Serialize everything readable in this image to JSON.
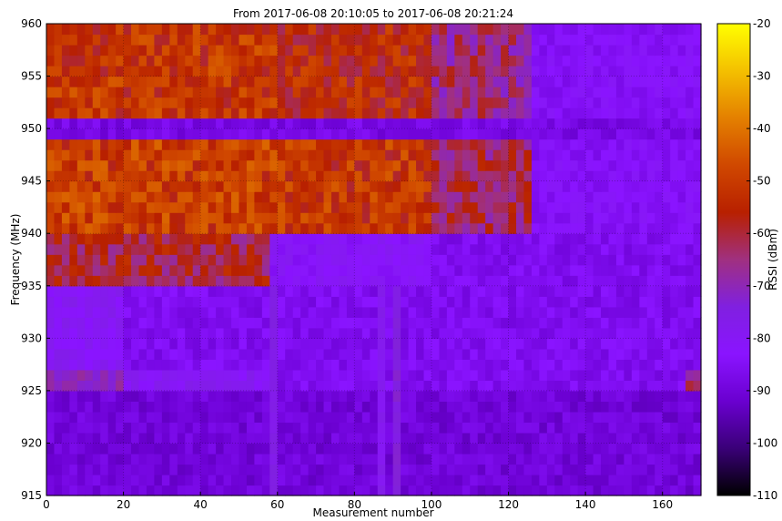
{
  "chart_data": {
    "type": "heatmap",
    "title": "From 2017-06-08 20:10:05 to 2017-06-08 20:21:24",
    "xlabel": "Measurement number",
    "ylabel": "Frequency (MHz)",
    "colorbar_label": "RSSI (dBm)",
    "xlim": [
      0,
      170
    ],
    "ylim": [
      915,
      960
    ],
    "x_ticks": [
      0,
      20,
      40,
      60,
      80,
      100,
      120,
      140,
      160
    ],
    "y_ticks": [
      915,
      920,
      925,
      930,
      935,
      940,
      945,
      950,
      955,
      960
    ],
    "colorbar_range": [
      -110,
      -20
    ],
    "colorbar_ticks": [
      -20,
      -30,
      -40,
      -50,
      -60,
      -70,
      -80,
      -90,
      -100,
      -110
    ],
    "colormap": [
      "#000000",
      "#3a0078",
      "#6a00d0",
      "#8a14ff",
      "#8020e0",
      "#a03080",
      "#b82000",
      "#d04800",
      "#e48000",
      "#f4c000",
      "#ffff00"
    ],
    "grid": true,
    "bins": {
      "x_step": 2,
      "y_step": 1
    },
    "rssi_bands": [
      {
        "freq_from": 915,
        "freq_to": 925,
        "segments": [
          {
            "x_from": 0,
            "x_to": 170,
            "rssi": -90
          }
        ]
      },
      {
        "freq_from": 925,
        "freq_to": 927,
        "segments": [
          {
            "x_from": 0,
            "x_to": 20,
            "rssi": -70
          },
          {
            "x_from": 20,
            "x_to": 60,
            "rssi": -80
          },
          {
            "x_from": 60,
            "x_to": 165,
            "rssi": -86
          },
          {
            "x_from": 165,
            "x_to": 170,
            "rssi": -62
          }
        ]
      },
      {
        "freq_from": 927,
        "freq_to": 935,
        "segments": [
          {
            "x_from": 0,
            "x_to": 20,
            "rssi": -80
          },
          {
            "x_from": 20,
            "x_to": 170,
            "rssi": -86
          }
        ]
      },
      {
        "freq_from": 935,
        "freq_to": 940,
        "segments": [
          {
            "x_from": 0,
            "x_to": 58,
            "rssi": -60
          },
          {
            "x_from": 58,
            "x_to": 100,
            "rssi": -82
          },
          {
            "x_from": 100,
            "x_to": 170,
            "rssi": -86
          }
        ]
      },
      {
        "freq_from": 940,
        "freq_to": 949,
        "segments": [
          {
            "x_from": 0,
            "x_to": 60,
            "rssi": -50
          },
          {
            "x_from": 60,
            "x_to": 100,
            "rssi": -52
          },
          {
            "x_from": 100,
            "x_to": 125,
            "rssi": -62
          },
          {
            "x_from": 125,
            "x_to": 170,
            "rssi": -84
          }
        ]
      },
      {
        "freq_from": 949,
        "freq_to": 951,
        "segments": [
          {
            "x_from": 0,
            "x_to": 170,
            "rssi": -88
          }
        ]
      },
      {
        "freq_from": 951,
        "freq_to": 960,
        "segments": [
          {
            "x_from": 0,
            "x_to": 60,
            "rssi": -52
          },
          {
            "x_from": 60,
            "x_to": 100,
            "rssi": -55
          },
          {
            "x_from": 100,
            "x_to": 125,
            "rssi": -65
          },
          {
            "x_from": 125,
            "x_to": 170,
            "rssi": -84
          }
        ]
      }
    ],
    "vertical_streaks": [
      {
        "x": 58,
        "freq_from": 915,
        "freq_to": 935,
        "rssi": -76
      },
      {
        "x": 86,
        "freq_from": 915,
        "freq_to": 935,
        "rssi": -78
      },
      {
        "x": 90,
        "freq_from": 915,
        "freq_to": 935,
        "rssi": -74
      }
    ]
  }
}
